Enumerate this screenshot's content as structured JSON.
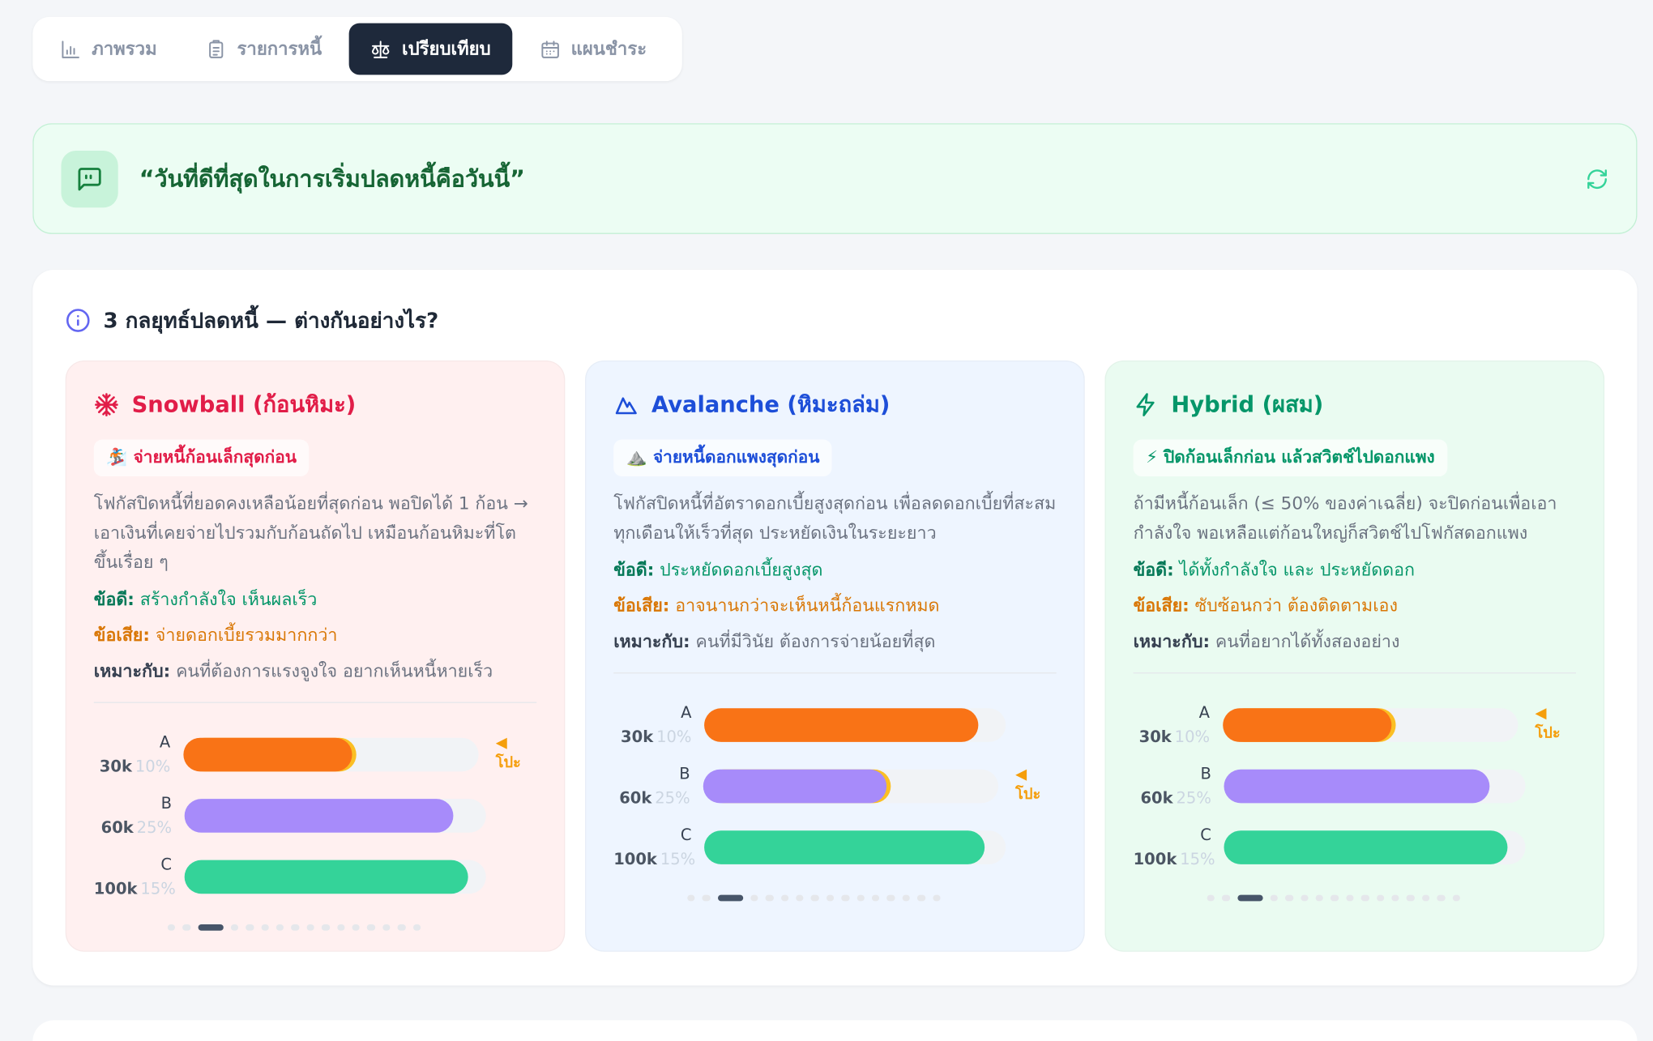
{
  "tabs": [
    {
      "label": "ภาพรวม",
      "active": false
    },
    {
      "label": "รายการหนี้",
      "active": false
    },
    {
      "label": "เปรียบเทียบ",
      "active": true
    },
    {
      "label": "แผนชำระ",
      "active": false
    }
  ],
  "quote": "“วันที่ดีที่สุดในการเริ่มปลดหนี้คือวันนี้”",
  "section": {
    "title": "3 กลยุทธ์ปลดหนี้ — ต่างกันอย่างไร?",
    "strategies": [
      {
        "title": "Snowball (ก้อนหิมะ)",
        "color": "#e11d48",
        "background": "#fff0f0",
        "tagline": "🏂 จ่ายหนี้ก้อนเล็กสุดก่อน",
        "description": "โฟกัสปิดหนี้ที่ยอดคงเหลือน้อยที่สุดก่อน พอปิดได้ 1 ก้อน → เอาเงินที่เคยจ่ายไปรวมกับก้อนถัดไป เหมือนก้อนหิมะที่โตขึ้นเรื่อย ๆ",
        "pros_label": "ข้อดี:",
        "pros": "สร้างกำลังใจ เห็นผลเร็ว",
        "cons_label": "ข้อเสีย:",
        "cons": "จ่ายดอกเบี้ยรวมมากกว่า",
        "fit_label": "เหมาะกับ:",
        "fit": "คนที่ต้องการแรงจูงใจ อยากเห็นหนี้หายเร็ว",
        "target_label": "◀ โปะ",
        "target": 0,
        "step": 2,
        "debts": [
          {
            "name": "A",
            "balance": "30k",
            "rate": "10%",
            "progress": 57,
            "color": "#f97316"
          },
          {
            "name": "B",
            "balance": "60k",
            "rate": "25%",
            "progress": 89,
            "color": "#a78bfa"
          },
          {
            "name": "C",
            "balance": "100k",
            "rate": "15%",
            "progress": 94,
            "color": "#34d399"
          }
        ]
      },
      {
        "title": "Avalanche (หิมะถล่ม)",
        "color": "#1d4ed8",
        "background": "#eef5ff",
        "tagline": "⛰️ จ่ายหนี้ดอกแพงสุดก่อน",
        "description": "โฟกัสปิดหนี้ที่อัตราดอกเบี้ยสูงสุดก่อน เพื่อลดดอกเบี้ยที่สะสมทุกเดือนให้เร็วที่สุด ประหยัดเงินในระยะยาว",
        "pros_label": "ข้อดี:",
        "pros": "ประหยัดดอกเบี้ยสูงสุด",
        "cons_label": "ข้อเสีย:",
        "cons": "อาจนานกว่าจะเห็นหนี้ก้อนแรกหมด",
        "fit_label": "เหมาะกับ:",
        "fit": "คนที่มีวินัย ต้องการจ่ายน้อยที่สุด",
        "target_label": "◀ โปะ",
        "target": 1,
        "step": 2,
        "debts": [
          {
            "name": "A",
            "balance": "30k",
            "rate": "10%",
            "progress": 91,
            "color": "#f97316"
          },
          {
            "name": "B",
            "balance": "60k",
            "rate": "25%",
            "progress": 62,
            "color": "#a78bfa"
          },
          {
            "name": "C",
            "balance": "100k",
            "rate": "15%",
            "progress": 93,
            "color": "#34d399"
          }
        ]
      },
      {
        "title": "Hybrid (ผสม)",
        "color": "#059669",
        "background": "#eafbf1",
        "tagline": "⚡ ปิดก้อนเล็กก่อน แล้วสวิตช์ไปดอกแพง",
        "description": "ถ้ามีหนี้ก้อนเล็ก (≤ 50% ของค่าเฉลี่ย) จะปิดก่อนเพื่อเอากำลังใจ พอเหลือแต่ก้อนใหญ่ก็สวิตช์ไปโฟกัสดอกแพง",
        "pros_label": "ข้อดี:",
        "pros": "ได้ทั้งกำลังใจ และ ประหยัดดอก",
        "cons_label": "ข้อเสีย:",
        "cons": "ซับซ้อนกว่า ต้องติดตามเอง",
        "fit_label": "เหมาะกับ:",
        "fit": "คนที่อยากได้ทั้งสองอย่าง",
        "target_label": "◀ โปะ",
        "target": 0,
        "step": 2,
        "debts": [
          {
            "name": "A",
            "balance": "30k",
            "rate": "10%",
            "progress": 57,
            "color": "#f97316"
          },
          {
            "name": "B",
            "balance": "60k",
            "rate": "25%",
            "progress": 88,
            "color": "#a78bfa"
          },
          {
            "name": "C",
            "balance": "100k",
            "rate": "15%",
            "progress": 94,
            "color": "#34d399"
          }
        ]
      }
    ]
  }
}
